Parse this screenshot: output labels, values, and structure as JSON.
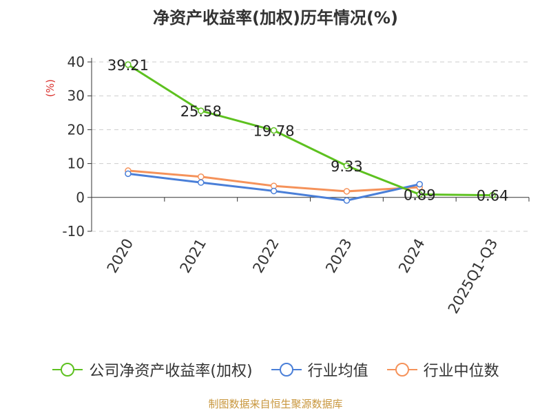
{
  "chart_data": {
    "type": "line",
    "title": "净资产收益率(加权)历年情况(%)",
    "ylabel": "(%)",
    "xlabel": "",
    "categories": [
      "2020",
      "2021",
      "2022",
      "2023",
      "2024",
      "2025Q1-Q3"
    ],
    "ylim": [
      -10,
      40
    ],
    "yticks": [
      40,
      30,
      20,
      10,
      0,
      -10
    ],
    "grid": true,
    "legend_position": "bottom",
    "series": [
      {
        "name": "公司净资产收益率(加权)",
        "color": "#5dc11f",
        "values": [
          39.21,
          25.58,
          19.78,
          9.33,
          0.89,
          0.64
        ],
        "labels": [
          "39.21",
          "25.58",
          "19.78",
          "9.33",
          "0.89",
          "0.64"
        ]
      },
      {
        "name": "行业均值",
        "color": "#4a7fd8",
        "values": [
          7.0,
          4.4,
          1.9,
          -0.9,
          3.9,
          null
        ]
      },
      {
        "name": "行业中位数",
        "color": "#f5925a",
        "values": [
          7.9,
          6.1,
          3.4,
          1.8,
          3.0,
          null
        ]
      }
    ]
  },
  "source": "制图数据来自恒生聚源数据库"
}
